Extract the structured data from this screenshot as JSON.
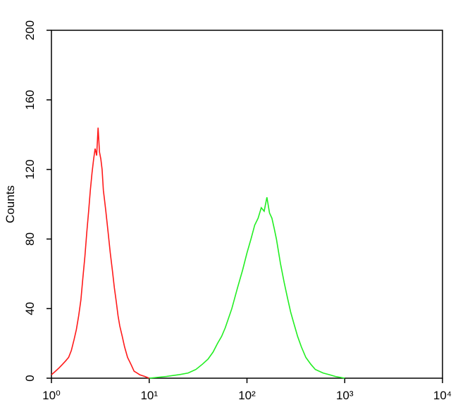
{
  "chart_data": {
    "type": "line",
    "y_label": "Counts",
    "xscale": "log",
    "xlim": [
      1,
      10000
    ],
    "ylim": [
      0,
      200
    ],
    "xticks": [
      {
        "value": 1,
        "label": "10⁰"
      },
      {
        "value": 10,
        "label": "10¹"
      },
      {
        "value": 100,
        "label": "10²"
      },
      {
        "value": 1000,
        "label": "10³"
      },
      {
        "value": 10000,
        "label": "10⁴"
      }
    ],
    "yticks": [
      0,
      40,
      80,
      120,
      160,
      200
    ],
    "series": [
      {
        "color": "#ff1a1a",
        "x": [
          1.0,
          1.1,
          1.2,
          1.3,
          1.4,
          1.5,
          1.6,
          1.7,
          1.8,
          1.9,
          2.0,
          2.1,
          2.2,
          2.3,
          2.4,
          2.5,
          2.6,
          2.7,
          2.8,
          2.9,
          3.0,
          3.1,
          3.2,
          3.3,
          3.4,
          3.5,
          3.6,
          3.8,
          4.0,
          4.2,
          4.4,
          4.6,
          4.8,
          5.0,
          5.3,
          5.6,
          6.0,
          6.5,
          7,
          7.5,
          8,
          9,
          10
        ],
        "values": [
          2,
          4,
          6,
          8,
          10,
          12,
          16,
          22,
          28,
          36,
          45,
          58,
          70,
          84,
          96,
          108,
          118,
          126,
          132,
          128,
          144,
          130,
          126,
          120,
          108,
          102,
          96,
          84,
          72,
          62,
          52,
          44,
          36,
          30,
          24,
          18,
          12,
          8,
          4,
          3,
          2,
          1,
          0
        ]
      },
      {
        "color": "#22ee22",
        "x": [
          10,
          15,
          20,
          25,
          30,
          35,
          40,
          45,
          50,
          55,
          60,
          70,
          80,
          90,
          100,
          110,
          120,
          130,
          140,
          150,
          160,
          170,
          180,
          190,
          200,
          220,
          240,
          260,
          280,
          300,
          330,
          360,
          400,
          450,
          500,
          600,
          700,
          800,
          1000
        ],
        "values": [
          0,
          1,
          2,
          3,
          5,
          8,
          11,
          15,
          20,
          24,
          29,
          40,
          52,
          62,
          72,
          80,
          88,
          92,
          98,
          96,
          104,
          95,
          92,
          86,
          80,
          66,
          55,
          46,
          38,
          32,
          24,
          18,
          12,
          8,
          5,
          3,
          2,
          1,
          0
        ]
      }
    ]
  }
}
